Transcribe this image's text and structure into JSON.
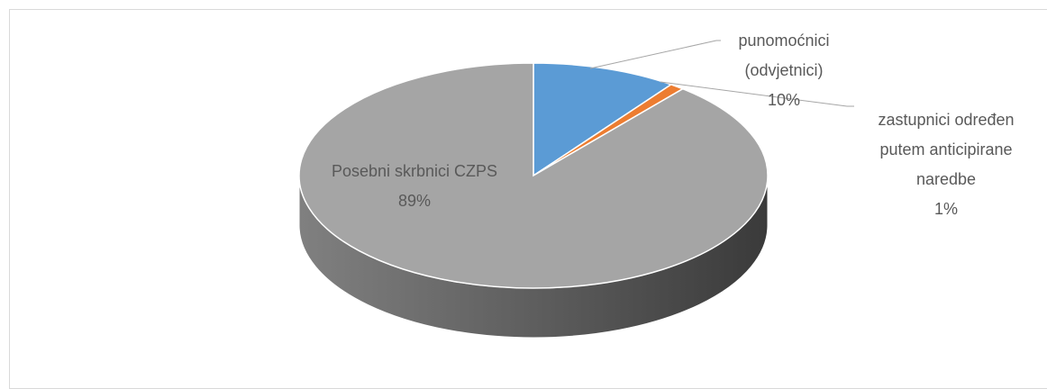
{
  "chart_data": {
    "type": "pie",
    "categories": [
      "punomoćnici (odvjetnici)",
      "zastupnici određen putem anticipirane naredbe",
      "Posebni skrbnici CZPS"
    ],
    "values": [
      10,
      1,
      89
    ],
    "value_labels": [
      "10%",
      "1%",
      "89%"
    ],
    "colors": [
      "#5b9bd5",
      "#ed7d31",
      "#a5a5a5"
    ],
    "three_d": true
  }
}
